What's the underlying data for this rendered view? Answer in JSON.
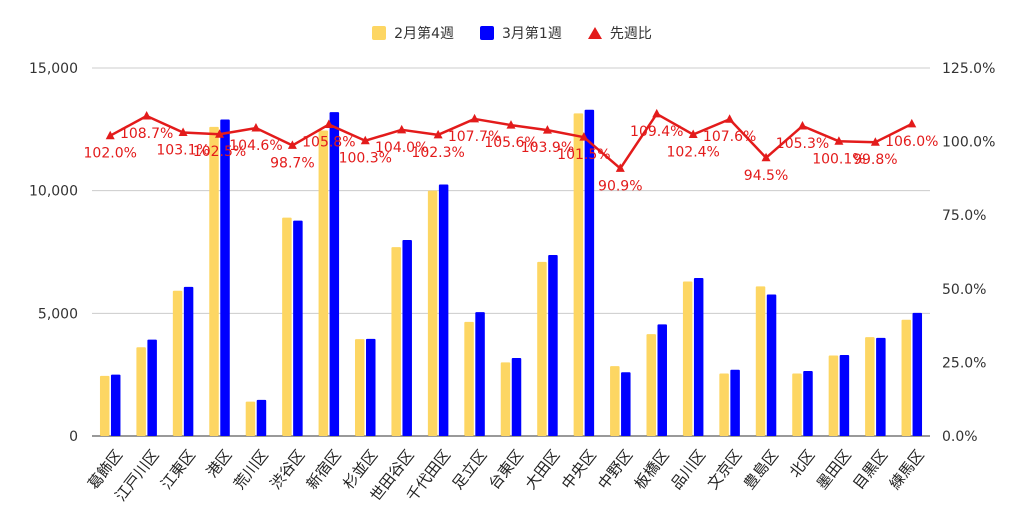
{
  "chart_data": {
    "type": "bar",
    "categories": [
      "葛飾区",
      "江戸川区",
      "江東区",
      "港区",
      "荒川区",
      "渋谷区",
      "新宿区",
      "杉並区",
      "世田谷区",
      "千代田区",
      "足立区",
      "台東区",
      "大田区",
      "中央区",
      "中野区",
      "板橋区",
      "品川区",
      "文京区",
      "豊島区",
      "北区",
      "墨田区",
      "目黒区",
      "練馬区"
    ],
    "series": [
      {
        "name": "2月第4週",
        "axis": "left",
        "values": [
          2450,
          3620,
          5920,
          12600,
          1400,
          8900,
          12450,
          3950,
          7700,
          10000,
          4650,
          3000,
          7100,
          13150,
          2850,
          4150,
          6300,
          2550,
          6100,
          2550,
          3280,
          4030,
          4740
        ]
      },
      {
        "name": "3月第1週",
        "axis": "left",
        "values": [
          2500,
          3930,
          6080,
          12900,
          1470,
          8780,
          13200,
          3960,
          7990,
          10250,
          5050,
          3180,
          7380,
          13300,
          2600,
          4550,
          6440,
          2700,
          5770,
          2650,
          3300,
          4000,
          5020
        ]
      },
      {
        "name": "先週比",
        "axis": "right",
        "type": "line",
        "values": [
          102.0,
          108.7,
          103.1,
          102.5,
          104.6,
          98.7,
          105.8,
          100.3,
          104.0,
          102.3,
          107.7,
          105.6,
          103.9,
          101.5,
          90.9,
          109.4,
          102.4,
          107.6,
          94.5,
          105.3,
          100.1,
          99.8,
          106.0
        ]
      }
    ],
    "data_labels": [
      "102.0%",
      "108.7%",
      "103.1%",
      "102.5%",
      "104.6%",
      "98.7%",
      "105.8%",
      "100.3%",
      "104.0%",
      "102.3%",
      "107.7%",
      "105.6%",
      "103.9%",
      "101.5%",
      "90.9%",
      "109.4%",
      "102.4%",
      "107.6%",
      "94.5%",
      "105.3%",
      "100.1%",
      "99.8%",
      "106.0%"
    ],
    "y_left": {
      "min": 0,
      "max": 15000,
      "ticks": [
        "0",
        "5,000",
        "10,000",
        "15,000"
      ],
      "tick_values": [
        0,
        5000,
        10000,
        15000
      ]
    },
    "y_right": {
      "min": 0,
      "max": 125,
      "ticks": [
        "0.0%",
        "25.0%",
        "50.0%",
        "75.0%",
        "100.0%",
        "125.0%"
      ],
      "tick_values": [
        0,
        25,
        50,
        75,
        100,
        125
      ]
    },
    "grid": true,
    "legend_position": "top-center"
  },
  "legend": {
    "items": [
      {
        "label": "2月第4週",
        "color": "#fdd663"
      },
      {
        "label": "3月第1週",
        "color": "#0000ff"
      },
      {
        "label": "先週比",
        "color": "#e31b1b"
      }
    ]
  },
  "colors": {
    "bar1": "#fdd663",
    "bar2": "#0000ff",
    "line": "#e31b1b",
    "grid": "#cccccc",
    "axis_text": "#333333"
  }
}
